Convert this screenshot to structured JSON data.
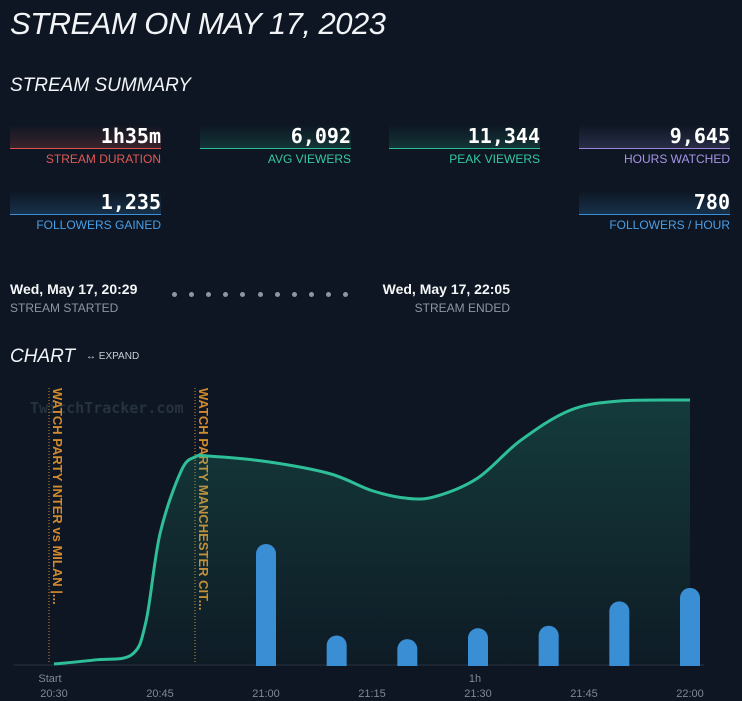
{
  "title": "STREAM ON MAY 17, 2023",
  "summary": {
    "heading": "STREAM SUMMARY",
    "stats": [
      {
        "value": "1h35m",
        "label": "STREAM DURATION",
        "color": "#d9534f"
      },
      {
        "value": "6,092",
        "label": "AVG VIEWERS",
        "color": "#2fbf98"
      },
      {
        "value": "11,344",
        "label": "PEAK VIEWERS",
        "color": "#2fbf98"
      },
      {
        "value": "9,645",
        "label": "HOURS WATCHED",
        "color": "#9a86d8"
      },
      {
        "value": "1,235",
        "label": "FOLLOWERS GAINED",
        "color": "#3b8fd6"
      },
      {
        "value": "780",
        "label": "FOLLOWERS / HOUR",
        "color": "#3b8fd6"
      }
    ]
  },
  "timeline": {
    "start_time": "Wed, May 17, 20:29",
    "start_label": "STREAM STARTED",
    "end_time": "Wed, May 17, 22:05",
    "end_label": "STREAM ENDED"
  },
  "chart": {
    "heading": "CHART",
    "expand_label": "EXPAND",
    "expand_icon": "arrows-horizontal-icon"
  },
  "chart_data": {
    "type": "line",
    "watermark": "TwitchTracker.com",
    "x_ticks": [
      "Start",
      "20:30",
      "20:45",
      "21:00",
      "21:15",
      "1h",
      "21:30",
      "21:45",
      "22:00"
    ],
    "xlim": [
      "20:29",
      "22:05"
    ],
    "series": [
      {
        "kind": "area",
        "color": "#2fbf98",
        "x": [
          "20:30",
          "20:36",
          "20:41",
          "20:43",
          "20:45",
          "20:48",
          "20:50",
          "20:52",
          "21:00",
          "21:09",
          "21:15",
          "21:20",
          "21:24",
          "21:30",
          "21:36",
          "21:43",
          "21:50",
          "22:00"
        ],
        "values": [
          0,
          180,
          400,
          1800,
          5600,
          8300,
          8900,
          8930,
          8700,
          8180,
          7450,
          7120,
          7200,
          8000,
          9600,
          10900,
          11300,
          11344
        ]
      },
      {
        "kind": "bar",
        "color": "#3a8fd4",
        "x": [
          "21:00",
          "21:10",
          "21:20",
          "21:30",
          "21:40",
          "21:50",
          "22:00"
        ],
        "values": [
          1,
          0.25,
          0.22,
          0.31,
          0.33,
          0.53,
          0.64
        ]
      }
    ],
    "annotations": [
      {
        "x": "20:29",
        "label": "WATCH PARTY INTER vs MILAN |..."
      },
      {
        "x": "20:50",
        "label": "WATCH PARTY MANCHESTER CIT..."
      }
    ]
  }
}
